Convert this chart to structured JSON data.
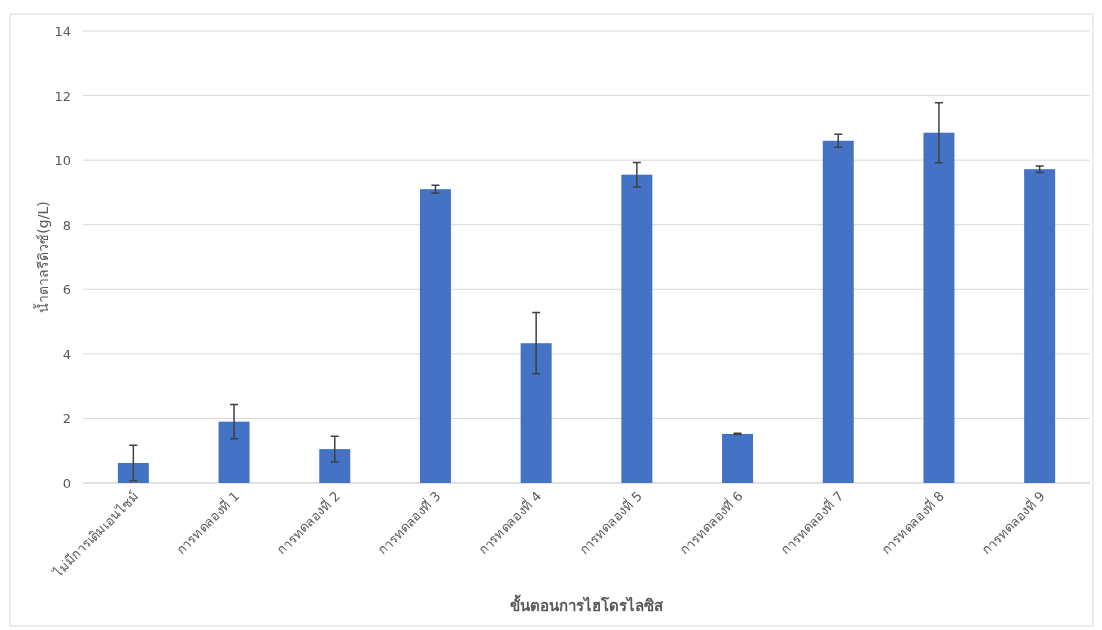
{
  "chart_data": {
    "type": "bar",
    "xlabel": "ขั้นตอนการไฮโดรไลซิส",
    "ylabel": "น้ำตาลรีดิวซ์(g/L)",
    "categories": [
      "ไม่มีการเติมเอนไซม์",
      "การทดลองที่ 1",
      "การทดลองที่ 2",
      "การทดลองที่ 3",
      "การทดลองที่ 4",
      "การทดลองที่ 5",
      "การทดลองที่ 6",
      "การทดลองที่ 7",
      "การทดลองที่ 8",
      "การทดลองที่ 9"
    ],
    "values": [
      0.62,
      1.9,
      1.05,
      9.1,
      4.33,
      9.55,
      1.52,
      10.6,
      10.85,
      9.72
    ],
    "errors": [
      0.55,
      0.53,
      0.4,
      0.12,
      0.95,
      0.38,
      0.02,
      0.2,
      0.93,
      0.1
    ],
    "color": "#4472c4",
    "ylim": [
      0,
      14
    ],
    "yticks": [
      0,
      2,
      4,
      6,
      8,
      10,
      12,
      14
    ],
    "grid": "y"
  }
}
